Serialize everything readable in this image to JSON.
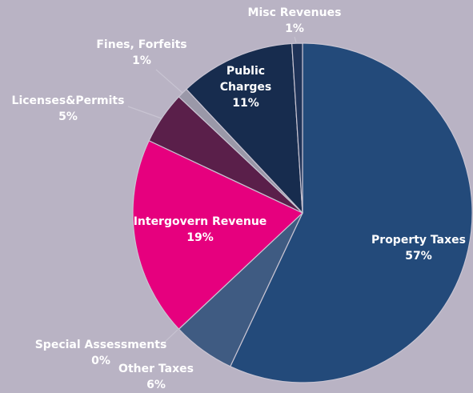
{
  "chart_data": {
    "type": "pie",
    "categories": [
      "Property Taxes",
      "Other Taxes",
      "Special Assessments",
      "Intergovern Revenue",
      "Licenses&Permits",
      "Fines, Forfeits",
      "Public Charges",
      "Misc Revenues"
    ],
    "values": [
      57,
      6,
      0,
      19,
      5,
      1,
      11,
      1
    ],
    "value_labels": [
      "57%",
      "6%",
      "0%",
      "19%",
      "5%",
      "1%",
      "11%",
      "1%"
    ],
    "colors": [
      "#234a7a",
      "#3f5b82",
      "#4a5f86",
      "#e6007e",
      "#5a1f4a",
      "#9a98a8",
      "#172c4e",
      "#1f3358"
    ]
  }
}
